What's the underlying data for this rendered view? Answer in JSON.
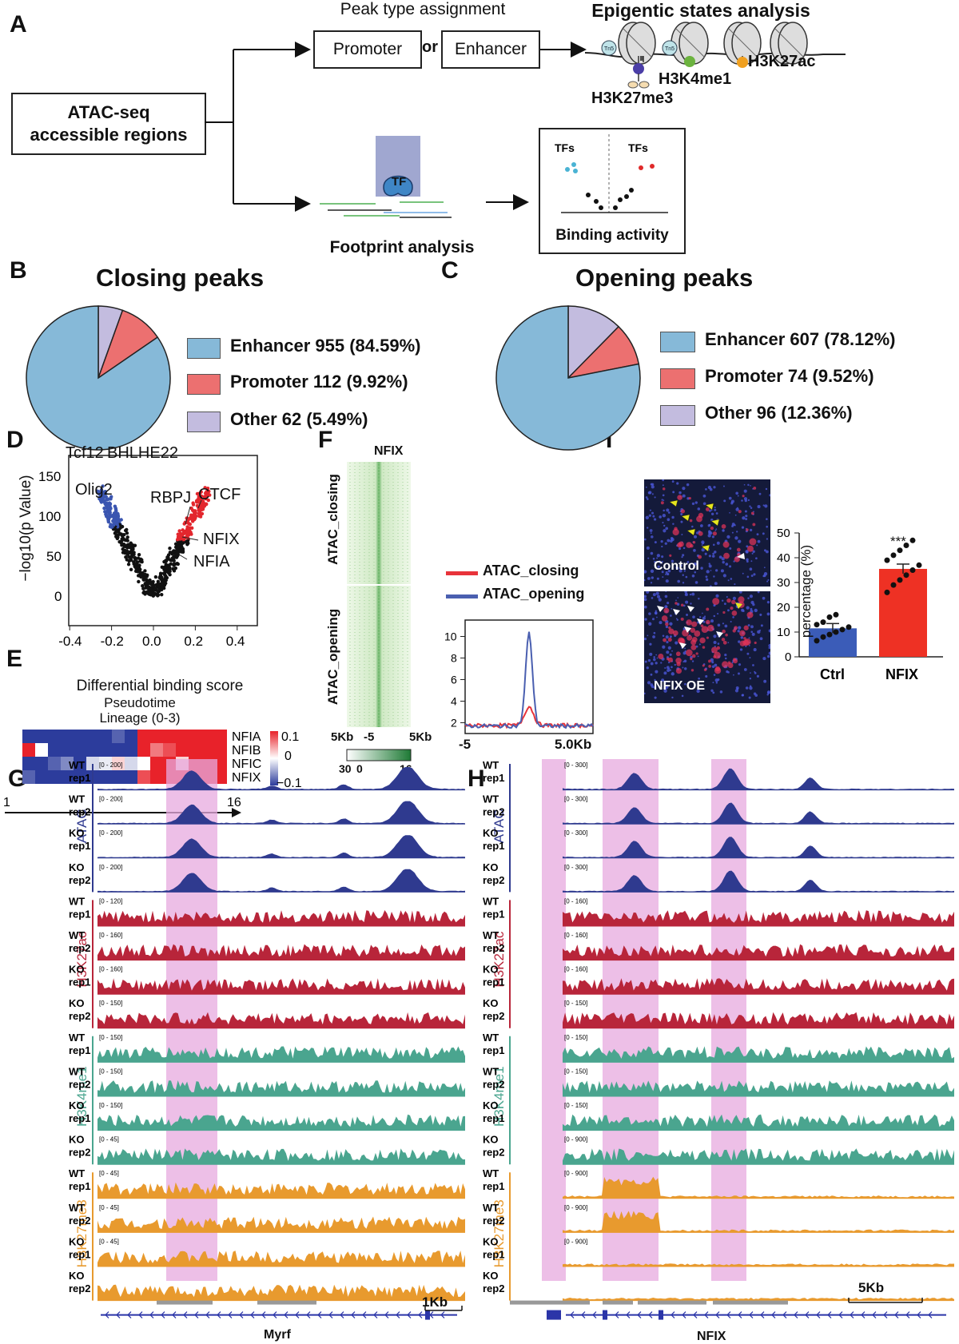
{
  "panel_letters": [
    "A",
    "B",
    "C",
    "D",
    "E",
    "F",
    "G",
    "H",
    "I"
  ],
  "panelA": {
    "atac_box": [
      "ATAC-seq",
      "accessible regions"
    ],
    "peak_type_title": "Peak type assignment",
    "promoter": "Promoter",
    "or": "or",
    "enhancer": "Enhancer",
    "epigenetic_title": "Epigentic states analysis",
    "marks": [
      "H3K4me1",
      "H3K27ac",
      "H3K27me3"
    ],
    "tn5": "Tn5",
    "tf": "TF",
    "footprint": "Footprint analysis",
    "binding_activity": "Binding activity",
    "tfs": "TFs"
  },
  "panelB": {
    "title": "Closing peaks",
    "legend": [
      "Enhancer 955 (84.59%)",
      "Promoter 112 (9.92%)",
      "Other 62 (5.49%)"
    ]
  },
  "panelC": {
    "title": "Opening peaks",
    "legend": [
      "Enhancer 607 (78.12%)",
      "Promoter 74 (9.52%)",
      "Other 96 (12.36%)"
    ]
  },
  "panelD": {
    "ylabel": "−log10(p Value)",
    "xlabel": "Differential binding score",
    "labels": [
      "Tcf12",
      "BHLHE22",
      "Olig2",
      "RBPJ",
      "CTCF",
      "NFIX",
      "NFIA"
    ]
  },
  "panelE": {
    "title": [
      "Pseudotime",
      "Lineage (0-3)"
    ],
    "rows": [
      "NFIA",
      "NFIB",
      "NFIC",
      "NFIX"
    ],
    "scale": [
      "0.1",
      "0",
      "−0.1"
    ],
    "axis_start": "1",
    "axis_end": "16"
  },
  "panelF": {
    "title": "NFIX",
    "row_labels": [
      "ATAC_closing",
      "ATAC_opening"
    ],
    "heat_x": [
      "5Kb",
      "-5",
      "5Kb"
    ],
    "color_scale": [
      "30",
      "0",
      "16"
    ],
    "legend": [
      "ATAC_closing",
      "ATAC_opening"
    ],
    "profile_x": [
      "-5",
      "5.0Kb"
    ]
  },
  "panelG": {
    "gene": "Myrf",
    "scale_bar": "1Kb",
    "groups": [
      "ATAC",
      "H3K27ac",
      "H3K4me1",
      "H3K27me3"
    ],
    "ranges": [
      "[0 - 200]",
      "[0 - 200]",
      "[0 - 200]",
      "[0 - 200]",
      "[0 - 120]",
      "[0 - 160]",
      "[0 - 160]",
      "[0 - 150]",
      "[0 - 150]",
      "[0 - 150]",
      "[0 - 150]",
      "[0 - 45]",
      "[0 - 45]",
      "[0 - 45]",
      "[0 - 45]"
    ]
  },
  "panelH": {
    "gene": "NFIX",
    "scale_bar": "5Kb",
    "ranges": [
      "[0 - 300]",
      "[0 - 300]",
      "[0 - 300]",
      "[0 - 300]",
      "[0 - 160]",
      "[0 - 160]",
      "[0 - 160]",
      "[0 - 150]",
      "[0 - 150]",
      "[0 - 150]",
      "[0 - 150]",
      "[0 - 900]",
      "[0 - 900]",
      "[0 - 900]",
      "[0 - 900]"
    ]
  },
  "track_labels": [
    [
      "WT",
      "rep1"
    ],
    [
      "WT",
      "rep2"
    ],
    [
      "KO",
      "rep1"
    ],
    [
      "KO",
      "rep2"
    ]
  ],
  "panelI": {
    "control": "Control",
    "oe": "NFIX OE",
    "ylabel": "percentage (%)",
    "signif": "***"
  },
  "colors": {
    "enhancer": "#86b9d8",
    "promoter": "#ec7070",
    "other": "#c3bcdf",
    "atac": "#2f3a8f",
    "h3k27ac": "#b8253a",
    "h3k4me1": "#4aa58f",
    "h3k27me3": "#e89a2e",
    "highlight": "#e7a9df",
    "closing": "#e8333a",
    "opening": "#4a5fb0"
  },
  "chart_data": [
    {
      "type": "pie",
      "title": "Closing peaks",
      "categories": [
        "Enhancer",
        "Promoter",
        "Other"
      ],
      "values": [
        955,
        112,
        62
      ],
      "percent": [
        84.59,
        9.92,
        5.49
      ]
    },
    {
      "type": "pie",
      "title": "Opening peaks",
      "categories": [
        "Enhancer",
        "Promoter",
        "Other"
      ],
      "values": [
        607,
        74,
        96
      ],
      "percent": [
        78.12,
        9.52,
        12.36
      ]
    },
    {
      "type": "bar",
      "categories": [
        "Ctrl",
        "NFIX"
      ],
      "values": [
        11.5,
        35.5
      ],
      "ylabel": "percentage (%)",
      "ylim": [
        0,
        50
      ],
      "yticks": [
        0,
        10,
        20,
        30,
        40,
        50
      ],
      "points": [
        [
          6.5,
          8,
          9,
          10,
          11,
          12,
          13,
          14,
          16,
          17
        ],
        [
          26,
          29,
          31,
          33,
          35,
          37,
          39,
          41,
          43,
          45,
          47
        ]
      ]
    },
    {
      "type": "line",
      "xlabel": "",
      "x_ticks": [
        "-5",
        "5.0Kb"
      ],
      "yticks": [
        2,
        4,
        6,
        8,
        10
      ],
      "ylim": [
        1,
        11
      ],
      "series": [
        {
          "name": "ATAC_closing",
          "peak": 3.5
        },
        {
          "name": "ATAC_opening",
          "peak": 10.3
        }
      ]
    },
    {
      "type": "scatter",
      "xlabel": "Differential binding score",
      "ylabel": "−log10(p Value)",
      "xlim": [
        -0.45,
        0.45
      ],
      "ylim": [
        0,
        180
      ],
      "xticks": [
        -0.4,
        -0.2,
        0.0,
        0.2,
        0.4
      ],
      "yticks": [
        0,
        50,
        100,
        150
      ]
    },
    {
      "type": "heatmap",
      "title": "Pseudotime Lineage (0-3)",
      "rows": [
        "NFIA",
        "NFIB",
        "NFIC",
        "NFIX"
      ],
      "range": [
        -0.1,
        0.1
      ],
      "values": [
        [
          -0.1,
          -0.1,
          -0.1,
          -0.1,
          -0.1,
          -0.1,
          -0.1,
          -0.08,
          -0.1,
          0.1,
          0.1,
          0.1,
          0.1,
          0.1,
          0.1,
          0.1
        ],
        [
          0.1,
          0.0,
          -0.1,
          -0.1,
          -0.1,
          -0.1,
          -0.1,
          -0.1,
          -0.1,
          0.1,
          0.06,
          0.08,
          0.1,
          0.1,
          0.1,
          0.1
        ],
        [
          -0.1,
          -0.1,
          -0.08,
          -0.06,
          -0.1,
          -0.02,
          -0.01,
          0.02,
          -0.02,
          0.0,
          0.1,
          0.1,
          0.02,
          0.1,
          0.1,
          0.1
        ],
        [
          -0.08,
          -0.1,
          -0.1,
          -0.1,
          -0.1,
          -0.1,
          -0.1,
          -0.1,
          -0.1,
          0.08,
          0.1,
          0.1,
          0.1,
          0.1,
          0.1,
          0.1
        ]
      ]
    }
  ]
}
